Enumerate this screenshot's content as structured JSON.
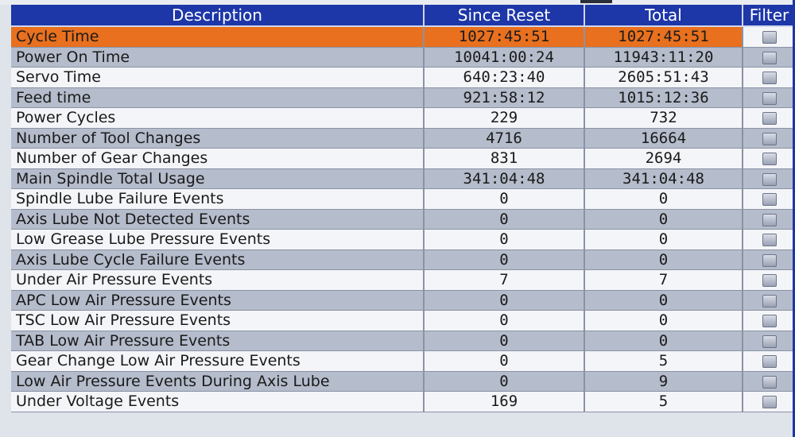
{
  "table": {
    "headers": {
      "description": "Description",
      "since_reset": "Since Reset",
      "total": "Total",
      "filter": "Filter"
    },
    "selected_row_index": 0,
    "rows": [
      {
        "description": "Cycle Time",
        "since_reset": "1027:45:51",
        "total": "1027:45:51",
        "filter_checked": false
      },
      {
        "description": "Power On Time",
        "since_reset": "10041:00:24",
        "total": "11943:11:20",
        "filter_checked": false
      },
      {
        "description": "Servo Time",
        "since_reset": "640:23:40",
        "total": "2605:51:43",
        "filter_checked": false
      },
      {
        "description": "Feed time",
        "since_reset": "921:58:12",
        "total": "1015:12:36",
        "filter_checked": false
      },
      {
        "description": "Power Cycles",
        "since_reset": "229",
        "total": "732",
        "filter_checked": false
      },
      {
        "description": "Number of Tool Changes",
        "since_reset": "4716",
        "total": "16664",
        "filter_checked": false
      },
      {
        "description": "Number of Gear Changes",
        "since_reset": "831",
        "total": "2694",
        "filter_checked": false
      },
      {
        "description": "Main Spindle Total Usage",
        "since_reset": "341:04:48",
        "total": "341:04:48",
        "filter_checked": false
      },
      {
        "description": "Spindle Lube Failure Events",
        "since_reset": "0",
        "total": "0",
        "filter_checked": false
      },
      {
        "description": "Axis Lube Not Detected Events",
        "since_reset": "0",
        "total": "0",
        "filter_checked": false
      },
      {
        "description": "Low Grease Lube Pressure Events",
        "since_reset": "0",
        "total": "0",
        "filter_checked": false
      },
      {
        "description": "Axis Lube Cycle Failure Events",
        "since_reset": "0",
        "total": "0",
        "filter_checked": false
      },
      {
        "description": "Under Air Pressure Events",
        "since_reset": "7",
        "total": "7",
        "filter_checked": false
      },
      {
        "description": "APC Low Air Pressure Events",
        "since_reset": "0",
        "total": "0",
        "filter_checked": false
      },
      {
        "description": "TSC Low Air Pressure Events",
        "since_reset": "0",
        "total": "0",
        "filter_checked": false
      },
      {
        "description": "TAB Low Air Pressure Events",
        "since_reset": "0",
        "total": "0",
        "filter_checked": false
      },
      {
        "description": "Gear Change Low Air Pressure Events",
        "since_reset": "0",
        "total": "5",
        "filter_checked": false
      },
      {
        "description": "Low Air Pressure Events During Axis Lube",
        "since_reset": "0",
        "total": "9",
        "filter_checked": false
      },
      {
        "description": "Under Voltage Events",
        "since_reset": "169",
        "total": "5",
        "filter_checked": false
      }
    ]
  },
  "colors": {
    "header_bg": "#1d36a8",
    "selected_row": "#e8701e",
    "row_light": "#f4f5f8",
    "row_dark": "#b5bccb"
  },
  "icons": {
    "filter_checkbox": "checkbox-icon"
  }
}
